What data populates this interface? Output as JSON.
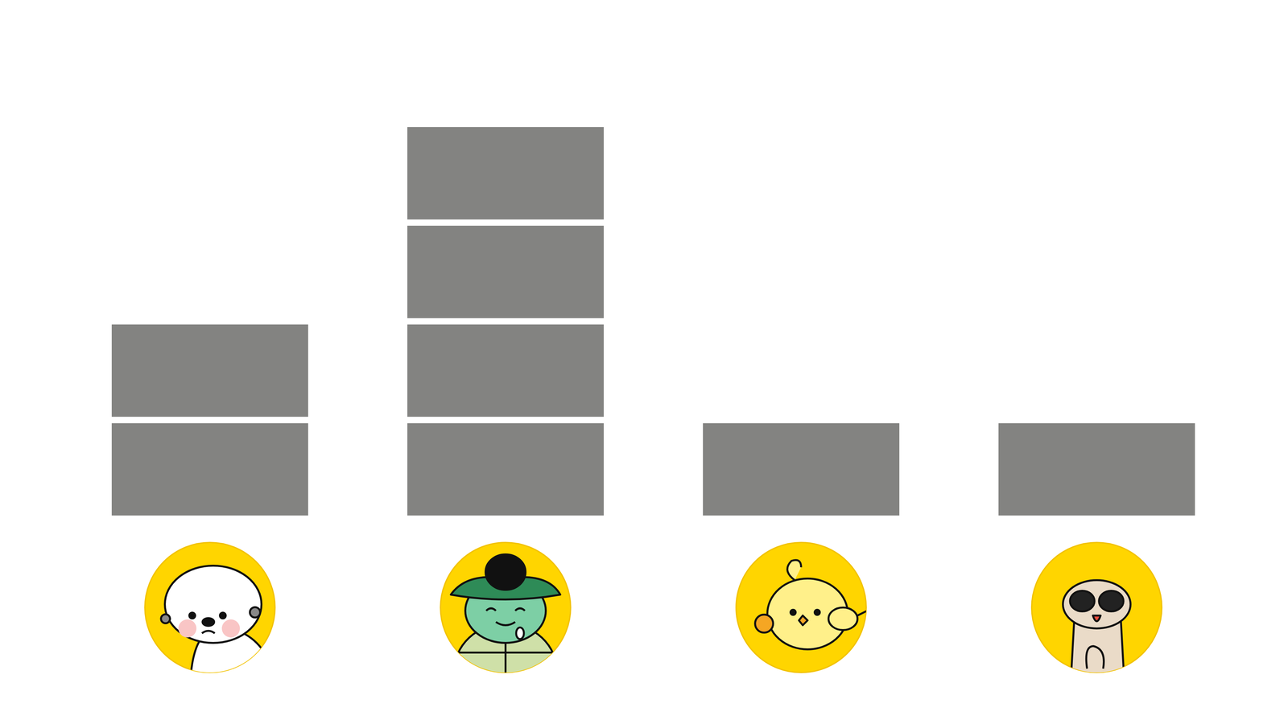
{
  "chart_data": {
    "type": "bar",
    "categories": [
      null,
      null,
      null,
      null
    ],
    "values": [
      2,
      4,
      1,
      1
    ],
    "color": "#838381",
    "ylim": [
      0,
      4
    ],
    "tick_labels": false
  }
}
